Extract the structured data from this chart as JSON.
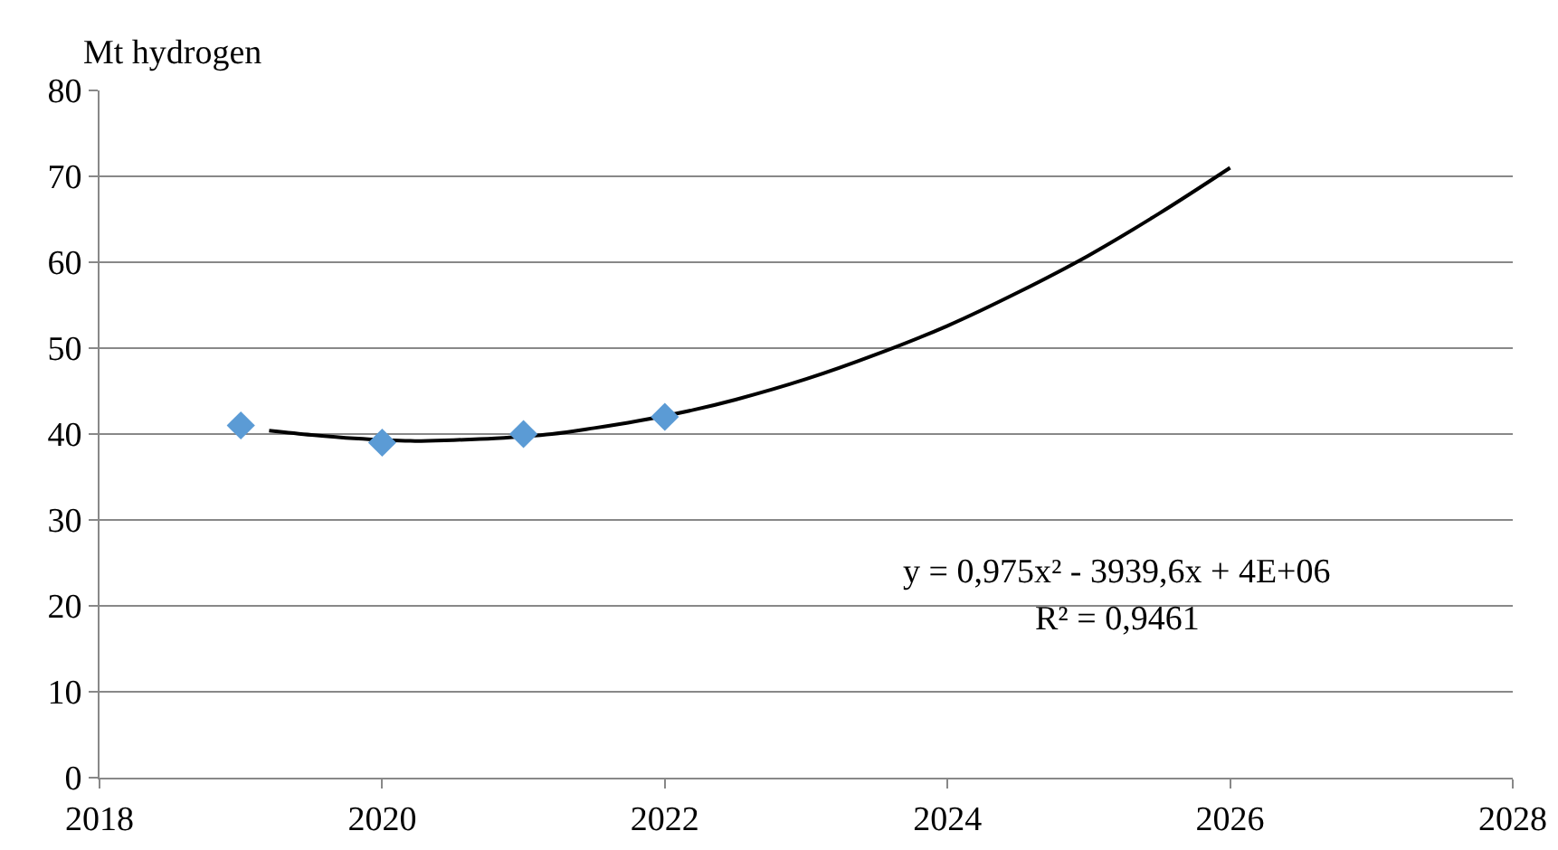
{
  "chart_data": {
    "type": "scatter",
    "ylabel": "Mt hydrogen",
    "series": [
      {
        "color": "#5b9bd5",
        "marker": "diamond",
        "x": [
          2019,
          2020,
          2021,
          2022
        ],
        "values": [
          41,
          39,
          40,
          42
        ]
      },
      {
        "type": "line",
        "color": "#000000",
        "marker": "none",
        "line_style": "solid",
        "x": [
          2019.2,
          2019.5,
          2019.8,
          2020.2,
          2020.5,
          2020.8,
          2021.2,
          2021.5,
          2021.8,
          2022.2,
          2022.5,
          2023,
          2023.5,
          2024,
          2024.5,
          2025,
          2025.5,
          2026
        ],
        "values": [
          40.4,
          39.9,
          39.5,
          39.2,
          39.3,
          39.5,
          40,
          40.7,
          41.5,
          42.8,
          44,
          46.4,
          49.3,
          52.6,
          56.5,
          60.8,
          65.7,
          71
        ]
      }
    ],
    "xlim": [
      2018,
      2028
    ],
    "xticks": [
      2018,
      2020,
      2022,
      2024,
      2026,
      2028
    ],
    "ylim": [
      0,
      80
    ],
    "yticks": [
      0,
      10,
      20,
      30,
      40,
      50,
      60,
      70,
      80
    ],
    "grid": "y",
    "annotations": [
      "y = 0,975x² - 3939,6x + 4E+06",
      "R² = 0,9461"
    ]
  }
}
